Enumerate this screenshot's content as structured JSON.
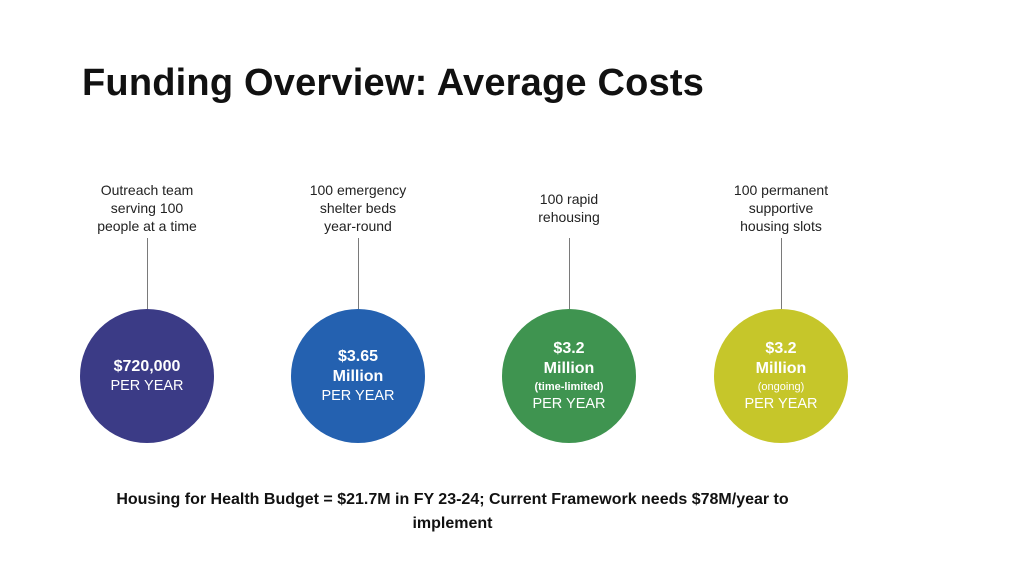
{
  "slide": {
    "title": "Funding Overview: Average Costs",
    "footer": "Housing for Health Budget = $21.7M in FY 23-24; Current Framework needs $78M/year to implement"
  },
  "items": [
    {
      "label_lines": [
        "Outreach team",
        "serving 100",
        "people at a time"
      ],
      "amount_lines": [
        "$720,000"
      ],
      "note": "",
      "per": "PER YEAR",
      "color": "#3b3b86"
    },
    {
      "label_lines": [
        "100 emergency",
        "shelter beds",
        "year-round"
      ],
      "amount_lines": [
        "$3.65",
        "Million"
      ],
      "note": "",
      "per": "PER YEAR",
      "color": "#2461b0"
    },
    {
      "label_lines": [
        "100 rapid",
        "rehousing"
      ],
      "amount_lines": [
        "$3.2",
        "Million"
      ],
      "note": "(time-limited)",
      "per": "PER YEAR",
      "color": "#3f9450"
    },
    {
      "label_lines": [
        "100 permanent",
        "supportive",
        "housing slots"
      ],
      "amount_lines": [
        "$3.2",
        "Million"
      ],
      "note": "(ongoing)",
      "per": "PER YEAR",
      "color": "#c6c62a"
    }
  ]
}
